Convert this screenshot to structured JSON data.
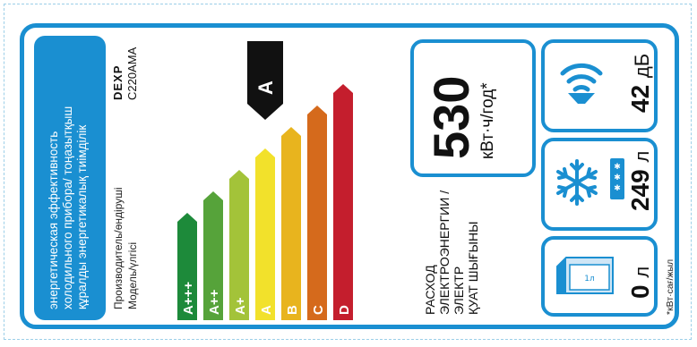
{
  "header": {
    "title_lines": [
      "энергетическая эффективность",
      "холодильного прибора/ тоңазытқыш",
      "құралды энергетикалық тиімділік"
    ]
  },
  "manufacturer_label": "Производитель/өндіруші",
  "model_label": "Модель/үлгісі",
  "brand": "DEXP",
  "model": "C220AMA",
  "current_class": "A",
  "scale": {
    "classes": [
      "A+++",
      "A++",
      "A+",
      "A",
      "B",
      "C",
      "D"
    ],
    "colors": [
      "#1d8a3a",
      "#56a33a",
      "#a3c339",
      "#f2e12b",
      "#e8b41e",
      "#d56a1c",
      "#c41e2d"
    ]
  },
  "consumption": {
    "value": "530",
    "unit": "кВт·ч/год*",
    "caption_lines": [
      "РАСХОД",
      "ЭЛЕКТРОЭНЕРГИИ /",
      "ЭЛЕКТР",
      "ҚУАТ ШЫҒЫНЫ"
    ]
  },
  "noise": {
    "value": "42",
    "unit": "дБ",
    "icon": "sound-waves-icon"
  },
  "freezer": {
    "value": "249",
    "unit": "л",
    "icon": "snowflake-icon"
  },
  "fridge": {
    "value": "0",
    "unit": "л",
    "icon": "milk-carton-icon"
  },
  "footnote": "*кВт·сағ/жыл"
}
